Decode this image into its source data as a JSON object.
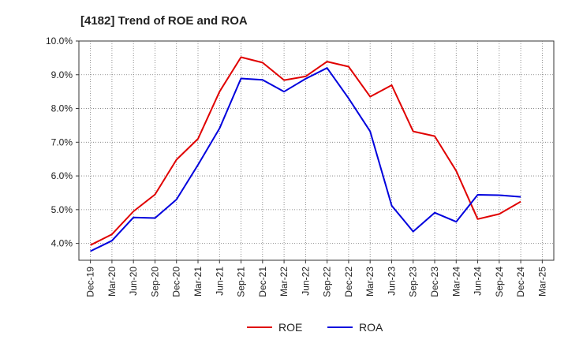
{
  "chart_data": {
    "type": "line",
    "title": "[4182]  Trend of ROE and ROA",
    "xlabel": "",
    "ylabel": "",
    "x": [
      "Dec-19",
      "Mar-20",
      "Jun-20",
      "Sep-20",
      "Dec-20",
      "Mar-21",
      "Jun-21",
      "Sep-21",
      "Dec-21",
      "Mar-22",
      "Jun-22",
      "Sep-22",
      "Dec-22",
      "Mar-23",
      "Jun-23",
      "Sep-23",
      "Dec-23",
      "Mar-24",
      "Jun-24",
      "Sep-24",
      "Dec-24",
      "Mar-25"
    ],
    "y_ticks": [
      "4.0%",
      "5.0%",
      "6.0%",
      "7.0%",
      "8.0%",
      "9.0%",
      "10.0%"
    ],
    "ylim": [
      3.5,
      10.0
    ],
    "grid": true,
    "legend_position": "bottom",
    "series": [
      {
        "name": "ROE",
        "color": "#e00000",
        "values": [
          3.95,
          4.27,
          4.95,
          5.45,
          6.48,
          7.1,
          8.5,
          9.52,
          9.36,
          8.84,
          8.95,
          9.39,
          9.24,
          8.35,
          8.69,
          7.32,
          7.18,
          6.15,
          4.72,
          4.87,
          5.24,
          null
        ]
      },
      {
        "name": "ROA",
        "color": "#0000dd",
        "values": [
          3.77,
          4.08,
          4.77,
          4.75,
          5.3,
          6.33,
          7.41,
          8.89,
          8.85,
          8.5,
          8.88,
          9.2,
          8.3,
          7.32,
          5.12,
          4.35,
          4.91,
          4.64,
          5.44,
          5.43,
          5.38,
          null
        ]
      }
    ]
  }
}
